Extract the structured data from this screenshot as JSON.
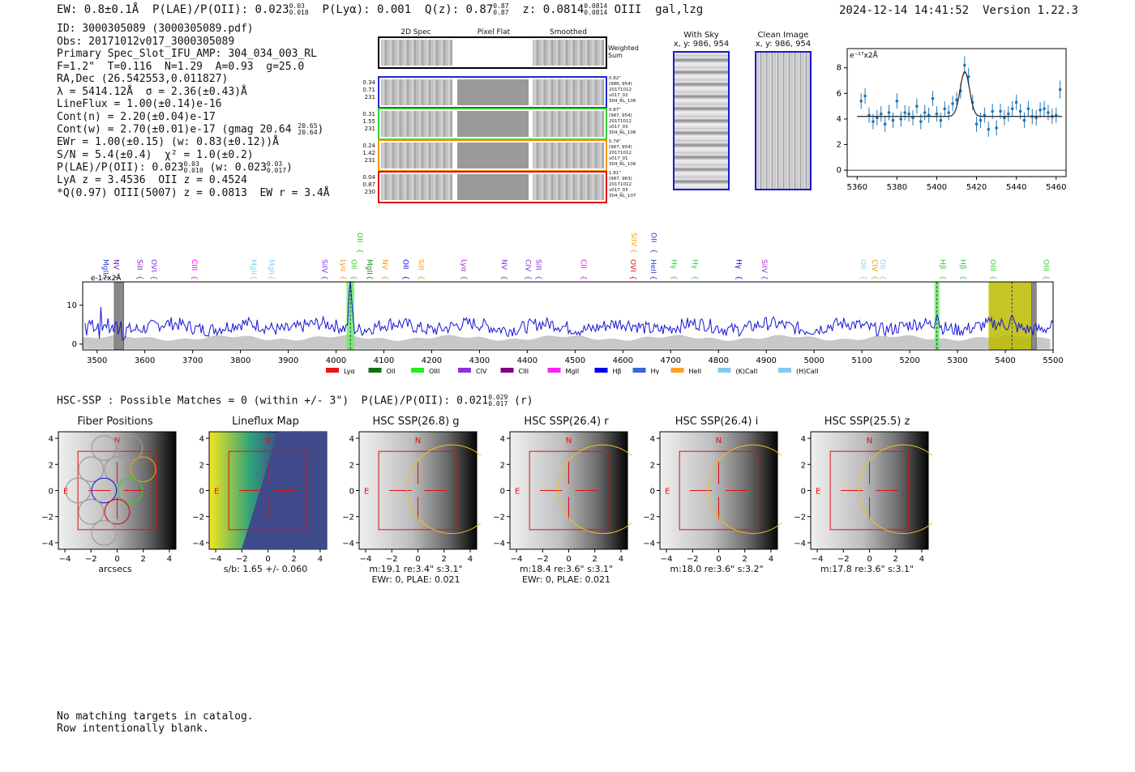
{
  "header": {
    "ew": "EW: 0.8±0.1Å",
    "plae_label": "P(LAE)/P(OII): 0.023",
    "plae_hi": "0.03",
    "plae_lo": "0.018",
    "plya": "P(Lyα): 0.001",
    "qz_label": "Q(z): 0.87",
    "qz_hi": "0.87",
    "qz_lo": "0.87",
    "z_label": "z: 0.0814",
    "z_hi": "0.0814",
    "z_lo": "0.0814",
    "line_class": "OIII  gal,lzg",
    "timestamp": "2024-12-14 14:41:52",
    "version": "Version 1.22.3"
  },
  "info": {
    "id": "ID: 3000305089 (3000305089.pdf)",
    "obs": "Obs: 20171012v017_3000305089",
    "primary": "Primary Spec_Slot_IFU_AMP: 304_034_003_RL",
    "fit": "F=1.2\"  T=0.116  N=1.29  A=0.93  g=25.0",
    "radec": "RA,Dec (26.542553,0.011827)",
    "lambda": "λ = 5414.12Å  σ = 2.36(±0.43)Å",
    "lineflux": "LineFlux = 1.00(±0.14)e-16",
    "contn": "Cont(n) = 2.20(±0.04)e-17",
    "contw": "Cont(w) = 2.70(±0.01)e-17 (gmag 20.64",
    "contw_hi": "20.65",
    "contw_lo": "20.64",
    "ewr": "EWr = 1.00(±0.15) (w: 0.83(±0.12))Å",
    "sn": "S/N = 5.4(±0.4)  χ² = 1.0(±0.2)",
    "plae2_a": "P(LAE)/P(OII): 0.023",
    "plae2_a_hi": "0.03",
    "plae2_a_lo": "0.018",
    "plae2_b": "(w: 0.023",
    "plae2_b_hi": "0.03",
    "plae2_b_lo": "0.017",
    "lya": "LyA z = 3.4536  OII z = 0.4524",
    "q": "*Q(0.97) OIII(5007) z = 0.0813  EW r = 3.4Å"
  },
  "cutouts": {
    "col_2d": "2D Spec",
    "col_flat": "Pixel Flat",
    "col_smooth": "Smoothed",
    "weighted": "Weighted Sum",
    "rows": [
      {
        "a": "0.34",
        "b": "0.71",
        "c": "231",
        "meta1": "0.82\"",
        "meta2": "(986, 954)",
        "meta3": "20171012",
        "meta4": "v017_02",
        "meta5": "304_RL_106",
        "color": "#1f28d0"
      },
      {
        "a": "0.31",
        "b": "1.55",
        "c": "231",
        "meta1": "0.87\"",
        "meta2": "(987, 954)",
        "meta3": "20171012",
        "meta4": "v017_03",
        "meta5": "304_RL_106",
        "color": "#33cc33"
      },
      {
        "a": "0.24",
        "b": "1.42",
        "c": "231",
        "meta1": "0.74\"",
        "meta2": "(987, 954)",
        "meta3": "20171012",
        "meta4": "v017_01",
        "meta5": "304_RL_106",
        "color": "#ee9900"
      },
      {
        "a": "0.04",
        "b": "0.87",
        "c": "230",
        "meta1": "1.81\"",
        "meta2": "(987, 963)",
        "meta3": "20171012",
        "meta4": "v017_03",
        "meta5": "304_RL_107",
        "color": "#e01010"
      }
    ],
    "with_sky": "With Sky",
    "with_sky_xy": "x, y: 986, 954",
    "clean": "Clean Image",
    "clean_xy": "x, y: 986, 954"
  },
  "zoom_chart": {
    "ylabel": "e⁻¹⁷x2Å",
    "xticks": [
      "5360",
      "5380",
      "5400",
      "5420",
      "5440",
      "5460"
    ],
    "yticks": [
      "0",
      "2",
      "4",
      "6",
      "8"
    ]
  },
  "chart_data": [
    {
      "type": "scatter",
      "title": "",
      "xlabel": "",
      "ylabel": "e-17x2Å",
      "xlim": [
        5355,
        5465
      ],
      "ylim": [
        -0.5,
        9.5
      ],
      "series": [
        {
          "name": "data",
          "x": [
            5362,
            5364,
            5366,
            5368,
            5370,
            5372,
            5374,
            5376,
            5378,
            5380,
            5382,
            5384,
            5386,
            5388,
            5390,
            5392,
            5394,
            5396,
            5398,
            5400,
            5402,
            5404,
            5406,
            5408,
            5410,
            5412,
            5414,
            5416,
            5418,
            5420,
            5422,
            5424,
            5426,
            5428,
            5430,
            5432,
            5434,
            5436,
            5438,
            5440,
            5442,
            5444,
            5446,
            5448,
            5450,
            5452,
            5454,
            5456,
            5458,
            5460,
            5462
          ],
          "y": [
            5.4,
            5.8,
            4.3,
            3.8,
            4.1,
            4.4,
            3.6,
            4.5,
            3.9,
            5.4,
            4.0,
            4.5,
            4.4,
            4.1,
            5.0,
            3.8,
            4.5,
            4.3,
            5.6,
            4.4,
            3.9,
            4.8,
            4.5,
            5.2,
            5.5,
            6.2,
            8.2,
            7.3,
            5.3,
            3.6,
            3.9,
            4.3,
            3.2,
            4.6,
            3.3,
            4.6,
            4.1,
            4.4,
            4.8,
            5.3,
            4.6,
            3.9,
            4.8,
            4.2,
            4.1,
            4.7,
            4.8,
            4.5,
            4.2,
            4.3,
            6.3
          ],
          "err": [
            0.6,
            0.6,
            0.6,
            0.6,
            0.6,
            0.6,
            0.6,
            0.6,
            0.6,
            0.6,
            0.6,
            0.6,
            0.6,
            0.6,
            0.6,
            0.6,
            0.6,
            0.6,
            0.6,
            0.6,
            0.6,
            0.6,
            0.6,
            0.6,
            0.6,
            0.6,
            0.7,
            0.7,
            0.6,
            0.6,
            0.6,
            0.6,
            0.6,
            0.6,
            0.6,
            0.6,
            0.6,
            0.6,
            0.6,
            0.6,
            0.6,
            0.6,
            0.6,
            0.6,
            0.6,
            0.6,
            0.6,
            0.6,
            0.6,
            0.6,
            0.7
          ]
        },
        {
          "name": "gaussian fit",
          "center": 5414.12,
          "sigma": 2.36,
          "amplitude": 3.5,
          "continuum": 4.2
        }
      ]
    },
    {
      "type": "line",
      "title": "",
      "xlabel": "",
      "ylabel": "",
      "xlim": [
        3470,
        5500
      ],
      "ylim": [
        -1.5,
        16
      ],
      "xticks": [
        3500,
        3600,
        3700,
        3800,
        3900,
        4000,
        4100,
        4200,
        4300,
        4400,
        4500,
        4600,
        4700,
        4800,
        4900,
        5000,
        5100,
        5200,
        5300,
        5400,
        5500
      ],
      "yticks": [
        0,
        10
      ],
      "unit_label": "e-17x2Å",
      "highlights": [
        {
          "x0": 4022,
          "x1": 4038,
          "color": "#66ee66"
        },
        {
          "x0": 5252,
          "x1": 5262,
          "color": "#66ee66"
        },
        {
          "x0": 5365,
          "x1": 5455,
          "color": "#bbbb00"
        }
      ],
      "masked": [
        {
          "x0": 3536,
          "x1": 3556
        },
        {
          "x0": 5455,
          "x1": 5465
        }
      ],
      "markers": [
        4030,
        5257,
        5414
      ],
      "lines": [
        {
          "name": "MgII",
          "x": 3508,
          "color": "#1f3fcc",
          "row": "low"
        },
        {
          "name": "NV",
          "x": 3530,
          "color": "#6a1e9e",
          "row": "low"
        },
        {
          "name": "SiII",
          "x": 3579,
          "color": "#7b1fa2",
          "row": "low"
        },
        {
          "name": "OVI",
          "x": 3609,
          "color": "#8a2be2",
          "row": "low"
        },
        {
          "name": "CIII",
          "x": 3694,
          "color": "#ff00ff",
          "row": "low"
        },
        {
          "name": "MgII",
          "x": 3818,
          "color": "#87ceeb",
          "row": "low"
        },
        {
          "name": "MgII",
          "x": 3855,
          "color": "#87ceeb",
          "row": "low"
        },
        {
          "name": "SiIV",
          "x": 3966,
          "color": "#8a2be2",
          "row": "low"
        },
        {
          "name": "Lyα",
          "x": 4005,
          "color": "#ff9900",
          "row": "low"
        },
        {
          "name": "OII",
          "x": 4027,
          "color": "#33cc33",
          "row": "low"
        },
        {
          "name": "MgII",
          "x": 4060,
          "color": "#228b22",
          "row": "low"
        },
        {
          "name": "OII",
          "x": 4040,
          "color": "#00dd00",
          "row": "high"
        },
        {
          "name": "NV",
          "x": 4092,
          "color": "#ff9900",
          "row": "low"
        },
        {
          "name": "OII",
          "x": 4136,
          "color": "#0000ff",
          "row": "low"
        },
        {
          "name": "SiII",
          "x": 4168,
          "color": "#ff9900",
          "row": "low"
        },
        {
          "name": "Lyα",
          "x": 4258,
          "color": "#9932cc",
          "row": "low"
        },
        {
          "name": "NV",
          "x": 4342,
          "color": "#8a2be2",
          "row": "low"
        },
        {
          "name": "CIV",
          "x": 4392,
          "color": "#8a2be2",
          "row": "low"
        },
        {
          "name": "SiII",
          "x": 4414,
          "color": "#8a2be2",
          "row": "low"
        },
        {
          "name": "CII",
          "x": 4508,
          "color": "#ff00ff",
          "row": "low"
        },
        {
          "name": "OVI",
          "x": 4611,
          "color": "#e01010",
          "row": "low"
        },
        {
          "name": "SiIV",
          "x": 4613,
          "color": "#ff9900",
          "row": "high"
        },
        {
          "name": "HeII",
          "x": 4654,
          "color": "#1f3fcc",
          "row": "low"
        },
        {
          "name": "OII",
          "x": 4655,
          "color": "#1f3fcc",
          "row": "high"
        },
        {
          "name": "Hγ",
          "x": 4697,
          "color": "#33cc33",
          "row": "low"
        },
        {
          "name": "Hγ",
          "x": 4741,
          "color": "#33cc33",
          "row": "low"
        },
        {
          "name": "Hγ",
          "x": 4833,
          "color": "#0000cc",
          "row": "low"
        },
        {
          "name": "SiIV",
          "x": 4886,
          "color": "#9932cc",
          "row": "low"
        },
        {
          "name": "OII",
          "x": 5093,
          "color": "#87ceeb",
          "row": "low"
        },
        {
          "name": "CIV",
          "x": 5117,
          "color": "#ff9900",
          "row": "low"
        },
        {
          "name": "OII",
          "x": 5134,
          "color": "#87ceeb",
          "row": "low"
        },
        {
          "name": "Hβ",
          "x": 5259,
          "color": "#33cc33",
          "row": "low"
        },
        {
          "name": "Hβ",
          "x": 5302,
          "color": "#33cc33",
          "row": "low"
        },
        {
          "name": "OIII",
          "x": 5364,
          "color": "#33cc33",
          "row": "low"
        },
        {
          "name": "OIII",
          "x": 5475,
          "color": "#33cc33",
          "row": "low"
        }
      ],
      "legend": [
        {
          "name": "Lyα",
          "color": "#e81818"
        },
        {
          "name": "OII",
          "color": "#127012"
        },
        {
          "name": "OIII",
          "color": "#22ee22"
        },
        {
          "name": "CIV",
          "color": "#8a35d8"
        },
        {
          "name": "CIII",
          "color": "#800080"
        },
        {
          "name": "MgII",
          "color": "#ff22ee"
        },
        {
          "name": "Hβ",
          "color": "#0000ee"
        },
        {
          "name": "Hγ",
          "color": "#3e62d8"
        },
        {
          "name": "HeII",
          "color": "#ffa020"
        },
        {
          "name": "(K)CaII",
          "color": "#88c8ee"
        },
        {
          "name": "(H)CaII",
          "color": "#88c8ee"
        }
      ]
    }
  ],
  "hsc": {
    "title": "HSC-SSP : Possible Matches = 0 (within +/- 3\")  P(LAE)/P(OII): 0.021",
    "hi": "0.029",
    "lo": "0.017",
    "band": "(r)",
    "stamps": [
      {
        "title": "Fiber Positions",
        "cap1": "arcsecs",
        "cap2": ""
      },
      {
        "title": "Lineflux Map",
        "cap1": "s/b: 1.65 +/- 0.060",
        "cap2": ""
      },
      {
        "title": "HSC SSP(26.8) g",
        "cap1": "m:19.1  re:3.4\"  s:3.1\"",
        "cap2": "EWr: 0, PLAE: 0.021"
      },
      {
        "title": "HSC SSP(26.4) r",
        "cap1": "m:18.4  re:3.6\"  s:3.1\"",
        "cap2": "EWr: 0, PLAE: 0.021"
      },
      {
        "title": "HSC SSP(26.4) i",
        "cap1": "m:18.0  re:3.6\"  s:3.2\"",
        "cap2": ""
      },
      {
        "title": "HSC SSP(25.5) z",
        "cap1": "m:17.8  re:3.6\"  s:3.1\"",
        "cap2": ""
      }
    ],
    "xticks": [
      "−4",
      "−2",
      "0",
      "2",
      "4"
    ],
    "yticks": [
      "4",
      "2",
      "0",
      "−2",
      "−4"
    ],
    "north": "N",
    "east": "E"
  },
  "footer": {
    "line1": "No matching targets in catalog.",
    "line2": "Row intentionally blank."
  }
}
